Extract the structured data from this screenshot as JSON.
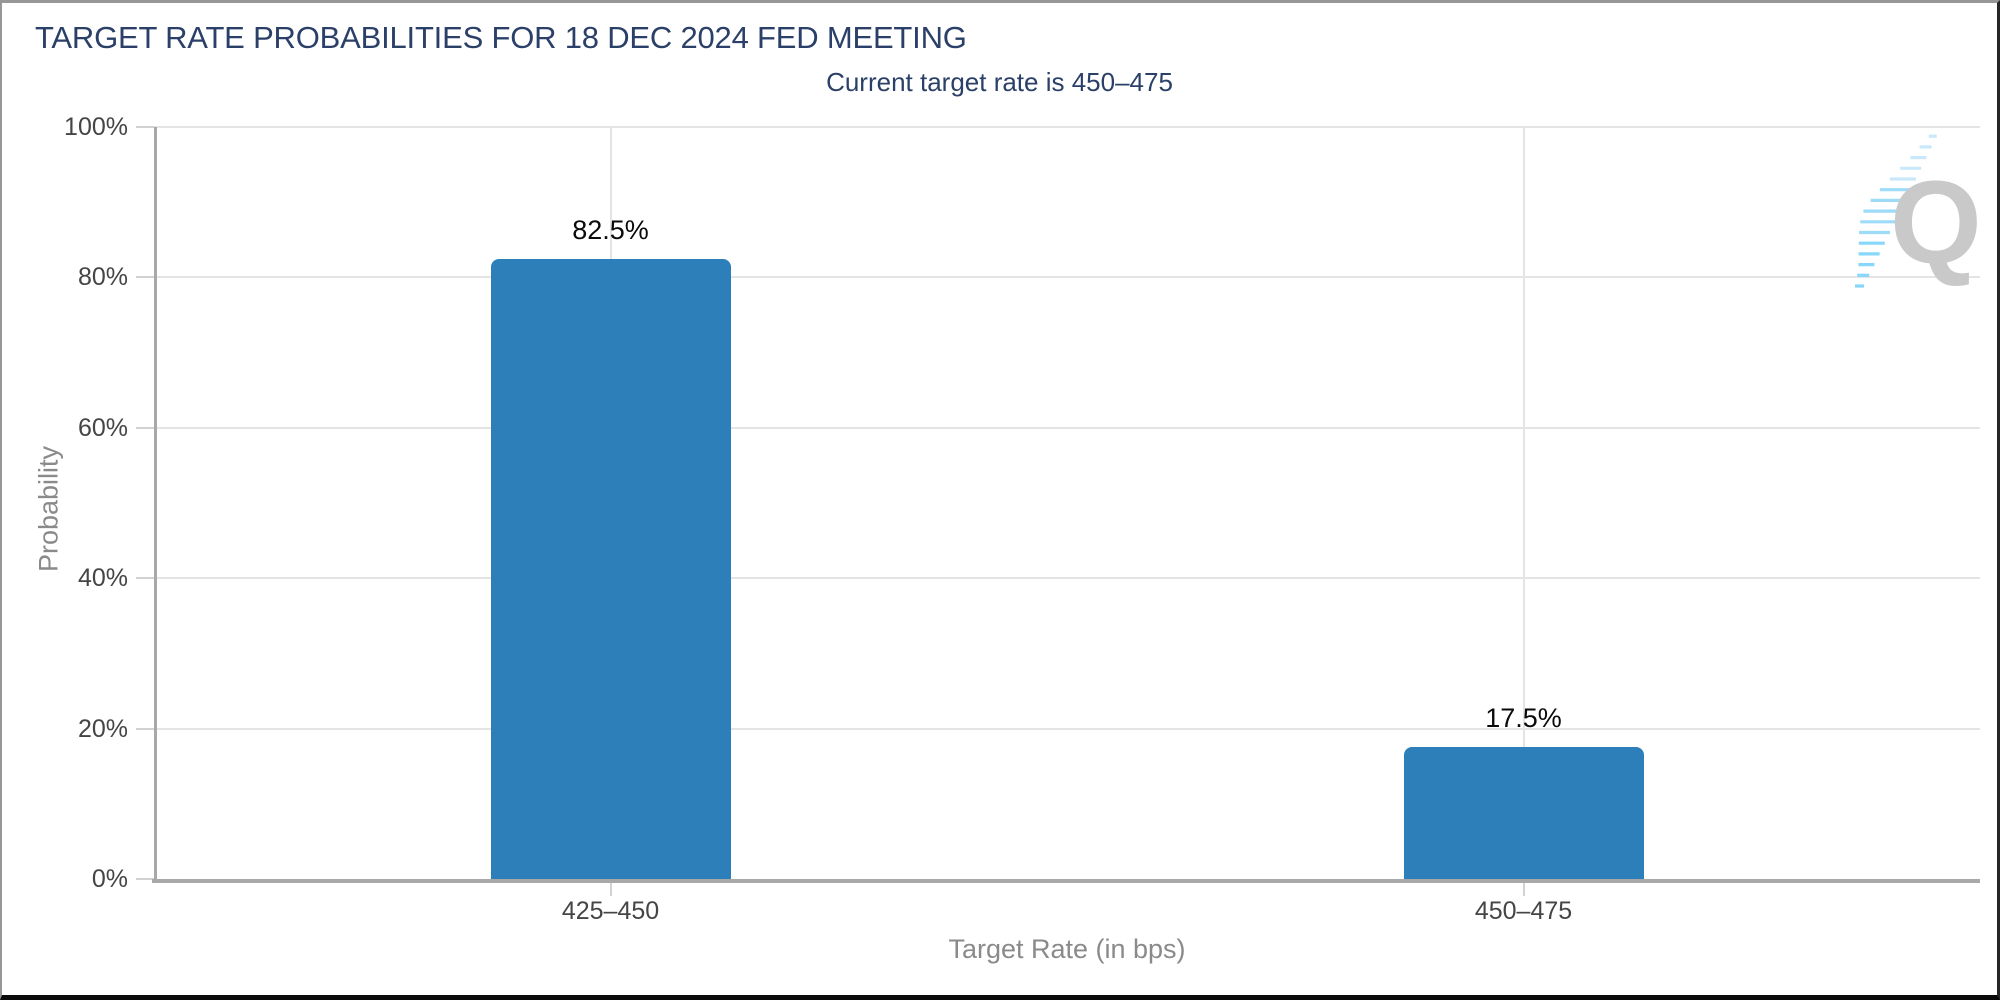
{
  "chart_data": {
    "type": "bar",
    "title": "TARGET RATE PROBABILITIES FOR 18 DEC 2024 FED MEETING",
    "subtitle": "Current target rate is 450–475",
    "categories": [
      "425–450",
      "450–475"
    ],
    "values": [
      82.5,
      17.5
    ],
    "value_labels": [
      "82.5%",
      "17.5%"
    ],
    "xlabel": "Target Rate (in bps)",
    "ylabel": "Probability",
    "ylim": [
      0,
      100
    ],
    "ytick_step": 20,
    "ytick_labels": [
      "0%",
      "20%",
      "40%",
      "60%",
      "80%",
      "100%"
    ],
    "grid": true,
    "legend": false
  },
  "watermark": {
    "letter": "Q"
  },
  "colors": {
    "title": "#2B4068",
    "bar": "#2C7FB8",
    "grid": "#E4E4E4",
    "axis": "#A8A8A8",
    "tick": "#D2D2D2",
    "tick_label": "#454545",
    "axis_title": "#8A8A8A",
    "value_label": "#0A0A0A",
    "watermark_q": "#C9C9C9",
    "swoosh_light": "#C9E9FB",
    "swoosh_mid": "#9EDBF8",
    "swoosh_dark": "#86D7F9"
  }
}
